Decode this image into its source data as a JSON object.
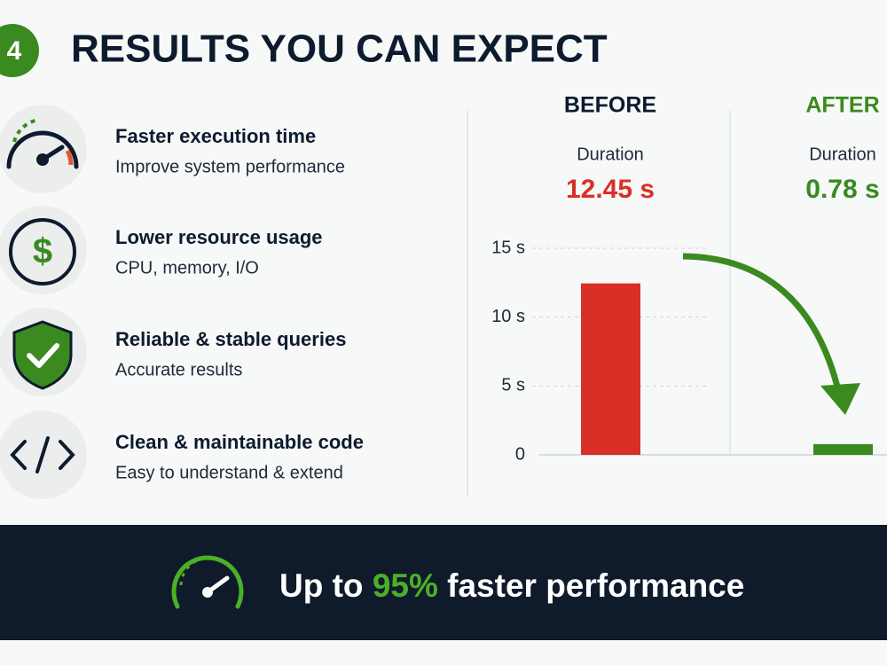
{
  "header": {
    "number": "4",
    "title": "RESULTS YOU CAN EXPECT"
  },
  "benefits": [
    {
      "title": "Faster execution time",
      "subtitle": "Improve system performance"
    },
    {
      "title": "Lower resource usage",
      "subtitle": "CPU, memory, I/O"
    },
    {
      "title": "Reliable & stable queries",
      "subtitle": "Accurate results"
    },
    {
      "title": "Clean & maintainable code",
      "subtitle": "Easy to understand & extend"
    }
  ],
  "chart_data": {
    "type": "bar",
    "metric_label": "Duration",
    "categories": [
      "BEFORE",
      "AFTER"
    ],
    "values": [
      12.45,
      0.78
    ],
    "value_labels": [
      "12.45 s",
      "0.78 s"
    ],
    "colors": [
      "#d93025",
      "#3a8a1f"
    ],
    "ylim": [
      0,
      15
    ],
    "yticks": [
      0,
      {
        "value": 5,
        "label": "5 s"
      },
      {
        "value": 10,
        "label": "10 s"
      },
      {
        "value": 15,
        "label": "15 s"
      }
    ],
    "grid": true
  },
  "footer": {
    "prefix": "Up to",
    "highlight": "95%",
    "suffix": "faster performance"
  }
}
